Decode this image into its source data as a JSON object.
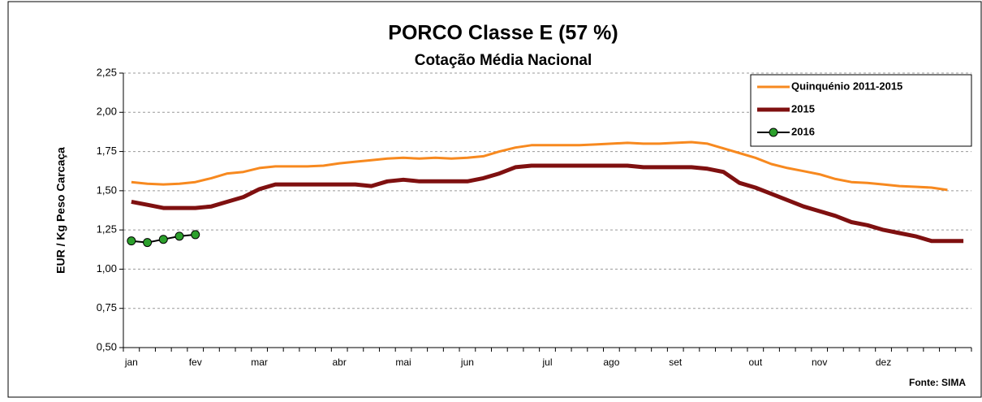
{
  "chart_data": {
    "type": "line",
    "title": "PORCO Classe E (57 %)",
    "subtitle": "Cotação Média Nacional",
    "y_label": "EUR / Kg Peso Carcaça",
    "source": "Fonte: SIMA",
    "categories": [
      "jan",
      null,
      null,
      null,
      "fev",
      null,
      null,
      null,
      "mar",
      null,
      null,
      null,
      null,
      "abr",
      null,
      null,
      null,
      "mai",
      null,
      null,
      null,
      "jun",
      null,
      null,
      null,
      null,
      "jul",
      null,
      null,
      null,
      "ago",
      null,
      null,
      null,
      "set",
      null,
      null,
      null,
      null,
      "out",
      null,
      null,
      null,
      "nov",
      null,
      null,
      null,
      "dez",
      null,
      null,
      null,
      null,
      null
    ],
    "ylim": [
      0.5,
      2.25
    ],
    "yticks": [
      {
        "value": 0.5,
        "label": "0,50"
      },
      {
        "value": 0.75,
        "label": "0,75"
      },
      {
        "value": 1,
        "label": "1,00"
      },
      {
        "value": 1.25,
        "label": "1,25"
      },
      {
        "value": 1.5,
        "label": "1,50"
      },
      {
        "value": 1.75,
        "label": "1,75"
      },
      {
        "value": 2,
        "label": "2,00"
      },
      {
        "value": 2.25,
        "label": "2,25"
      }
    ],
    "grid": true,
    "legend": "upper right",
    "series": [
      {
        "name": "Quinquénio 2011-2015",
        "color": "#f7891f",
        "width": 3,
        "marker": false,
        "values": [
          1.555,
          1.545,
          1.54,
          1.545,
          1.555,
          1.58,
          1.61,
          1.62,
          1.645,
          1.655,
          1.655,
          1.655,
          1.66,
          1.675,
          1.685,
          1.695,
          1.705,
          1.71,
          1.705,
          1.71,
          1.705,
          1.71,
          1.72,
          1.75,
          1.775,
          1.79,
          1.79,
          1.79,
          1.79,
          1.795,
          1.8,
          1.805,
          1.8,
          1.8,
          1.805,
          1.81,
          1.8,
          1.77,
          1.74,
          1.71,
          1.67,
          1.645,
          1.625,
          1.605,
          1.575,
          1.555,
          1.55,
          1.54,
          1.53,
          1.525,
          1.52,
          1.505,
          null
        ]
      },
      {
        "name": "2015",
        "color": "#7f1010",
        "width": 5,
        "marker": false,
        "values": [
          1.43,
          1.41,
          1.39,
          1.39,
          1.39,
          1.4,
          1.43,
          1.46,
          1.51,
          1.54,
          1.54,
          1.54,
          1.54,
          1.54,
          1.54,
          1.53,
          1.56,
          1.57,
          1.56,
          1.56,
          1.56,
          1.56,
          1.58,
          1.61,
          1.65,
          1.66,
          1.66,
          1.66,
          1.66,
          1.66,
          1.66,
          1.66,
          1.65,
          1.65,
          1.65,
          1.65,
          1.64,
          1.62,
          1.55,
          1.52,
          1.48,
          1.44,
          1.4,
          1.37,
          1.34,
          1.3,
          1.28,
          1.25,
          1.23,
          1.21,
          1.18,
          1.18,
          1.18
        ]
      },
      {
        "name": "2016",
        "color": "#000000",
        "marker_color": "#2ca02c",
        "width": 2,
        "marker": true,
        "values": [
          1.18,
          1.17,
          1.19,
          1.21,
          1.22,
          null,
          null,
          null,
          null,
          null,
          null,
          null,
          null,
          null,
          null,
          null,
          null,
          null,
          null,
          null,
          null,
          null,
          null,
          null,
          null,
          null,
          null,
          null,
          null,
          null,
          null,
          null,
          null,
          null,
          null,
          null,
          null,
          null,
          null,
          null,
          null,
          null,
          null,
          null,
          null,
          null,
          null,
          null,
          null,
          null,
          null,
          null,
          null
        ]
      }
    ]
  }
}
